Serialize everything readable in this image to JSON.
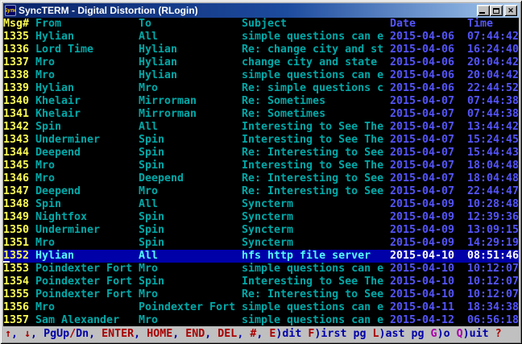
{
  "window": {
    "title": "SyncTERM - Digital Distortion (RLogin)",
    "icon_label": "Sync",
    "buttons": {
      "minimize": "minimize",
      "maximize": "maximize",
      "close": "✕"
    }
  },
  "table": {
    "headers": {
      "msg": "Msg#",
      "from": "From",
      "to": "To",
      "subject": "Subject",
      "date": "Date",
      "time": "Time"
    },
    "rows": [
      {
        "msg": "1335",
        "from": "Hylian",
        "to": "All",
        "subject": "simple questions can e",
        "date": "2015-04-06",
        "time": "07:44:42",
        "selected": false
      },
      {
        "msg": "1336",
        "from": "Lord Time",
        "to": "Hylian",
        "subject": "Re: change city and st",
        "date": "2015-04-06",
        "time": "16:24:40",
        "selected": false
      },
      {
        "msg": "1337",
        "from": "Mro",
        "to": "Hylian",
        "subject": "change city and state",
        "date": "2015-04-06",
        "time": "20:04:42",
        "selected": false
      },
      {
        "msg": "1338",
        "from": "Mro",
        "to": "Hylian",
        "subject": "simple questions can e",
        "date": "2015-04-06",
        "time": "20:04:42",
        "selected": false
      },
      {
        "msg": "1339",
        "from": "Hylian",
        "to": "Mro",
        "subject": "Re: simple questions c",
        "date": "2015-04-06",
        "time": "22:44:52",
        "selected": false
      },
      {
        "msg": "1340",
        "from": "Khelair",
        "to": "Mirrorman",
        "subject": "Re: Sometimes",
        "date": "2015-04-07",
        "time": "07:44:38",
        "selected": false
      },
      {
        "msg": "1341",
        "from": "Khelair",
        "to": "Mirrorman",
        "subject": "Re: Sometimes",
        "date": "2015-04-07",
        "time": "07:44:38",
        "selected": false
      },
      {
        "msg": "1342",
        "from": "Spin",
        "to": "All",
        "subject": "Interesting to See The",
        "date": "2015-04-07",
        "time": "13:44:42",
        "selected": false
      },
      {
        "msg": "1343",
        "from": "Underminer",
        "to": "Spin",
        "subject": "Interesting to See The",
        "date": "2015-04-07",
        "time": "15:24:45",
        "selected": false
      },
      {
        "msg": "1344",
        "from": "Deepend",
        "to": "Spin",
        "subject": "Re: Interesting to See",
        "date": "2015-04-07",
        "time": "15:44:43",
        "selected": false
      },
      {
        "msg": "1345",
        "from": "Mro",
        "to": "Spin",
        "subject": "Interesting to See The",
        "date": "2015-04-07",
        "time": "18:04:48",
        "selected": false
      },
      {
        "msg": "1346",
        "from": "Mro",
        "to": "Deepend",
        "subject": "Re: Interesting to See",
        "date": "2015-04-07",
        "time": "18:04:48",
        "selected": false
      },
      {
        "msg": "1347",
        "from": "Deepend",
        "to": "Mro",
        "subject": "Re: Interesting to See",
        "date": "2015-04-07",
        "time": "22:44:47",
        "selected": false
      },
      {
        "msg": "1348",
        "from": "Spin",
        "to": "All",
        "subject": "Syncterm",
        "date": "2015-04-09",
        "time": "10:28:48",
        "selected": false
      },
      {
        "msg": "1349",
        "from": "Nightfox",
        "to": "Spin",
        "subject": "Syncterm",
        "date": "2015-04-09",
        "time": "12:39:36",
        "selected": false
      },
      {
        "msg": "1350",
        "from": "Underminer",
        "to": "Spin",
        "subject": "Syncterm",
        "date": "2015-04-09",
        "time": "13:09:15",
        "selected": false
      },
      {
        "msg": "1351",
        "from": "Mro",
        "to": "Spin",
        "subject": "Syncterm",
        "date": "2015-04-09",
        "time": "14:29:19",
        "selected": false
      },
      {
        "msg": "1352",
        "from": "Hylian",
        "to": "All",
        "subject": "hfs http file server",
        "date": "2015-04-10",
        "time": "08:51:46",
        "selected": true
      },
      {
        "msg": "1353",
        "from": "Poindexter Fort",
        "to": "Mro",
        "subject": "simple questions can e",
        "date": "2015-04-10",
        "time": "10:12:07",
        "selected": false
      },
      {
        "msg": "1354",
        "from": "Poindexter Fort",
        "to": "Spin",
        "subject": "Interesting to See The",
        "date": "2015-04-10",
        "time": "10:12:07",
        "selected": false
      },
      {
        "msg": "1355",
        "from": "Poindexter Fort",
        "to": "Mro",
        "subject": "Re: Interesting to See",
        "date": "2015-04-10",
        "time": "10:12:07",
        "selected": false
      },
      {
        "msg": "1356",
        "from": "Mro",
        "to": "Poindexter Fort",
        "subject": "simple questions can e",
        "date": "2015-04-11",
        "time": "18:34:38",
        "selected": false
      },
      {
        "msg": "1357",
        "from": "Sam Alexander",
        "to": "Mro",
        "subject": "simple questions can e",
        "date": "2015-04-12",
        "time": "06:56:18",
        "selected": false
      }
    ]
  },
  "statusbar": {
    "segments": [
      {
        "text": "↑",
        "color": "red"
      },
      {
        "text": ", ",
        "color": "blue"
      },
      {
        "text": "↓",
        "color": "red"
      },
      {
        "text": ", ",
        "color": "blue"
      },
      {
        "text": "PgUp",
        "color": "blue"
      },
      {
        "text": "/",
        "color": "red"
      },
      {
        "text": "Dn",
        "color": "blue"
      },
      {
        "text": ", ",
        "color": "blue"
      },
      {
        "text": "ENTER",
        "color": "red"
      },
      {
        "text": ", ",
        "color": "blue"
      },
      {
        "text": "HOME",
        "color": "red"
      },
      {
        "text": ", ",
        "color": "blue"
      },
      {
        "text": "END",
        "color": "red"
      },
      {
        "text": ", ",
        "color": "blue"
      },
      {
        "text": "DEL",
        "color": "red"
      },
      {
        "text": ", ",
        "color": "blue"
      },
      {
        "text": "#",
        "color": "red"
      },
      {
        "text": ", ",
        "color": "blue"
      },
      {
        "text": "E",
        "color": "red"
      },
      {
        "text": ")dit ",
        "color": "blue"
      },
      {
        "text": "F",
        "color": "red"
      },
      {
        "text": ")irst pg ",
        "color": "blue"
      },
      {
        "text": "L",
        "color": "red"
      },
      {
        "text": ")ast pg ",
        "color": "blue"
      },
      {
        "text": "G",
        "color": "magenta"
      },
      {
        "text": ")o ",
        "color": "blue"
      },
      {
        "text": "Q",
        "color": "magenta"
      },
      {
        "text": ")uit ",
        "color": "blue"
      },
      {
        "text": "?",
        "color": "red"
      }
    ]
  },
  "colors": {
    "terminal_bg": "#000000",
    "header_text": "#FCFCFC",
    "msg_number": "#FCFC54",
    "body_cyan": "#00A8A8",
    "date_blue": "#5454FC",
    "selection_bg": "#0000A8",
    "selection_cyan": "#54FCFC",
    "statusbar_bg": "#C0C0C0",
    "status_red": "#A80000",
    "status_blue": "#0000A8",
    "status_magenta": "#A800A8",
    "titlebar_gradient_left": "#0A246A",
    "titlebar_gradient_right": "#A6CAF0"
  }
}
